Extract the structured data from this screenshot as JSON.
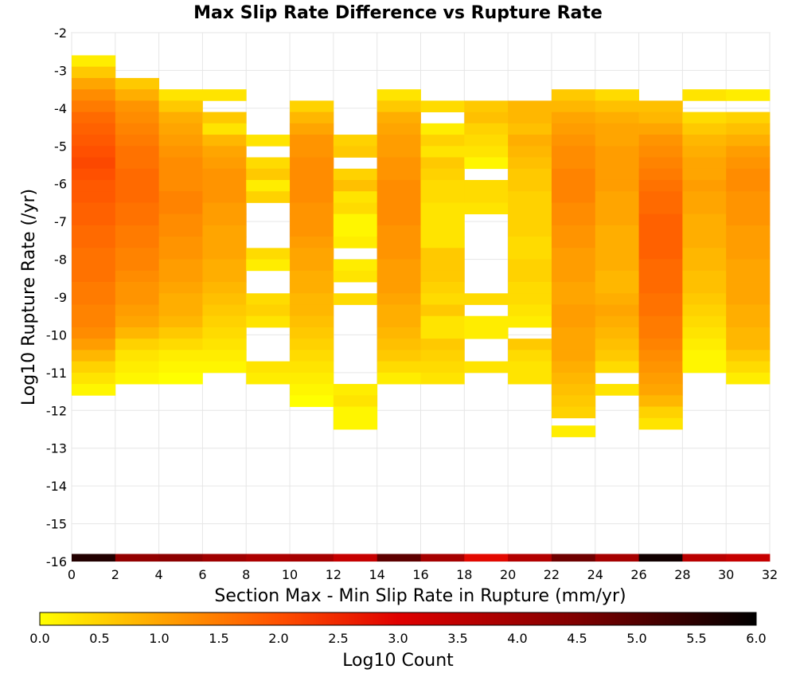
{
  "chart_data": {
    "type": "heatmap",
    "title": "Max Slip Rate Difference vs Rupture Rate",
    "xlabel": "Section Max - Min Slip Rate in Rupture (mm/yr)",
    "ylabel": "Log10 Rupture Rate (/yr)",
    "xlim": [
      0,
      32
    ],
    "ylim": [
      -16,
      -2
    ],
    "x_ticks": [
      "0",
      "2",
      "4",
      "6",
      "8",
      "10",
      "12",
      "14",
      "16",
      "18",
      "20",
      "22",
      "24",
      "26",
      "28",
      "30",
      "32"
    ],
    "y_ticks": [
      "-2",
      "-3",
      "-4",
      "-5",
      "-6",
      "-7",
      "-8",
      "-9",
      "-10",
      "-11",
      "-12",
      "-13",
      "-14",
      "-15",
      "-16"
    ],
    "grid": true,
    "x_bin_width": 2,
    "y_bin_height": 0.3,
    "colorbar": {
      "label": "Log10 Count",
      "range": [
        0.0,
        6.0
      ],
      "ticks": [
        "0.0",
        "0.5",
        "1.0",
        "1.5",
        "2.0",
        "2.5",
        "3.0",
        "3.5",
        "4.0",
        "4.5",
        "5.0",
        "5.5",
        "6.0"
      ],
      "colors": [
        "#ffff00",
        "#ffa500",
        "#ff5000",
        "#e00000",
        "#800000",
        "#000000"
      ],
      "stops": [
        0.0,
        1.0,
        2.0,
        3.0,
        4.5,
        6.0
      ]
    },
    "columns": [
      {
        "x_start": 0,
        "y_top": -2.6,
        "values": [
          0.2,
          0.6,
          1.0,
          1.3,
          1.5,
          1.7,
          1.8,
          1.9,
          2.0,
          2.1,
          2.0,
          1.9,
          1.9,
          1.8,
          1.8,
          1.7,
          1.7,
          1.6,
          1.6,
          1.6,
          1.5,
          1.5,
          1.4,
          1.4,
          1.3,
          1.1,
          0.8,
          0.5,
          0.3,
          0.1
        ]
      },
      {
        "x_start": 2,
        "y_top": -3.2,
        "values": [
          0.6,
          0.9,
          1.2,
          1.3,
          1.4,
          1.5,
          1.6,
          1.6,
          1.7,
          1.7,
          1.7,
          1.6,
          1.6,
          1.5,
          1.5,
          1.4,
          1.4,
          1.3,
          1.2,
          1.2,
          1.1,
          1.0,
          0.8,
          0.5,
          0.3,
          0.2,
          0.1
        ]
      },
      {
        "x_start": 4,
        "y_top": -3.5,
        "values": [
          0.3,
          0.6,
          0.9,
          1.0,
          1.1,
          1.2,
          1.3,
          1.3,
          1.3,
          1.4,
          1.4,
          1.3,
          1.3,
          1.2,
          1.2,
          1.1,
          1.1,
          1.0,
          0.9,
          0.9,
          0.8,
          0.6,
          0.4,
          0.2,
          0.1,
          0.0
        ]
      },
      {
        "x_start": 6,
        "y_top": -3.5,
        "values": [
          0.3,
          null,
          0.6,
          0.3,
          0.8,
          1.0,
          1.1,
          1.2,
          1.2,
          1.2,
          1.1,
          1.1,
          1.0,
          1.0,
          1.0,
          0.9,
          0.9,
          0.8,
          0.7,
          0.6,
          0.5,
          0.4,
          0.3,
          0.2,
          0.1
        ]
      },
      {
        "x_start": 8,
        "y_top": -4.7,
        "values": [
          0.3,
          null,
          0.4,
          0.6,
          0.2,
          0.5,
          null,
          null,
          null,
          null,
          0.4,
          0.2,
          null,
          null,
          0.4,
          0.5,
          0.3,
          null,
          null,
          null,
          0.3,
          0.2
        ]
      },
      {
        "x_start": 10,
        "y_top": -3.8,
        "values": [
          0.5,
          0.8,
          1.0,
          1.2,
          1.2,
          1.3,
          1.3,
          1.3,
          1.3,
          1.2,
          1.2,
          1.2,
          1.1,
          1.0,
          1.0,
          0.9,
          0.9,
          0.8,
          0.8,
          0.7,
          0.6,
          0.5,
          0.4,
          0.3,
          0.2,
          0.1,
          0.0
        ]
      },
      {
        "x_start": 12,
        "y_top": -4.7,
        "values": [
          0.5,
          0.6,
          null,
          0.5,
          0.7,
          0.3,
          0.4,
          0.1,
          0.1,
          0.2,
          null,
          0.2,
          0.3,
          null,
          0.4,
          null,
          null,
          null,
          null,
          null,
          null,
          null,
          0.2,
          0.3,
          0.1,
          0.1
        ]
      },
      {
        "x_start": 14,
        "y_top": -3.5,
        "values": [
          0.3,
          0.6,
          0.9,
          1.0,
          1.1,
          1.1,
          1.2,
          1.2,
          1.3,
          1.3,
          1.3,
          1.3,
          1.2,
          1.2,
          1.2,
          1.1,
          1.1,
          1.1,
          1.0,
          0.9,
          0.9,
          0.8,
          0.7,
          0.6,
          0.4,
          0.2
        ]
      },
      {
        "x_start": 16,
        "y_top": -3.8,
        "values": [
          0.4,
          null,
          0.2,
          0.5,
          0.3,
          0.6,
          0.5,
          0.4,
          0.4,
          0.3,
          0.3,
          0.3,
          0.3,
          0.6,
          0.6,
          0.6,
          0.5,
          0.4,
          0.6,
          0.3,
          0.3,
          0.6,
          0.5,
          0.4,
          0.3
        ]
      },
      {
        "x_start": 18,
        "y_top": -3.8,
        "values": [
          0.6,
          0.7,
          0.5,
          0.4,
          0.3,
          0.1,
          null,
          0.4,
          0.4,
          0.3,
          null,
          null,
          null,
          null,
          null,
          null,
          null,
          0.4,
          null,
          0.2,
          0.2,
          null,
          null,
          0.3
        ]
      },
      {
        "x_start": 20,
        "y_top": -3.8,
        "values": [
          0.8,
          0.8,
          0.7,
          0.9,
          0.8,
          0.7,
          0.6,
          0.6,
          0.5,
          0.5,
          0.5,
          0.5,
          0.4,
          0.4,
          0.5,
          0.5,
          0.4,
          0.4,
          0.3,
          0.2,
          null,
          0.6,
          0.4,
          0.3,
          0.3
        ]
      },
      {
        "x_start": 22,
        "y_top": -3.5,
        "values": [
          0.6,
          0.8,
          1.0,
          1.1,
          1.2,
          1.3,
          1.3,
          1.4,
          1.4,
          1.4,
          1.3,
          1.3,
          1.2,
          1.2,
          1.1,
          1.1,
          1.1,
          1.0,
          1.0,
          1.1,
          1.1,
          1.0,
          1.0,
          1.0,
          0.9,
          0.8,
          0.7,
          0.6,
          0.5
        ]
      },
      {
        "x_start": 24,
        "y_top": -3.5,
        "values": [
          0.4,
          0.7,
          0.9,
          1.0,
          1.0,
          1.1,
          1.1,
          1.1,
          1.1,
          1.0,
          1.0,
          1.0,
          0.9,
          0.9,
          0.9,
          0.9,
          0.8,
          0.8,
          0.9,
          1.0,
          0.9,
          0.8,
          0.7,
          0.6,
          0.4,
          null,
          0.3
        ]
      },
      {
        "x_start": 26,
        "y_top": -3.8,
        "values": [
          0.7,
          0.8,
          1.0,
          1.2,
          1.3,
          1.4,
          1.5,
          1.6,
          1.7,
          1.7,
          1.8,
          1.8,
          1.8,
          1.8,
          1.7,
          1.7,
          1.7,
          1.6,
          1.6,
          1.5,
          1.5,
          1.4,
          1.3,
          1.2,
          1.1,
          1.0,
          0.8,
          0.5,
          0.3
        ]
      },
      {
        "x_start": 28,
        "y_top": -3.5,
        "values": [
          0.3,
          null,
          0.4,
          0.6,
          0.8,
          0.9,
          1.0,
          1.0,
          1.1,
          1.0,
          1.0,
          0.9,
          0.9,
          0.9,
          0.8,
          0.8,
          0.7,
          0.7,
          0.6,
          0.5,
          0.4,
          0.3,
          0.2,
          0.1,
          0.1
        ]
      },
      {
        "x_start": 30,
        "y_top": -3.5,
        "values": [
          0.2,
          null,
          0.5,
          0.7,
          0.9,
          1.1,
          1.2,
          1.3,
          1.3,
          1.2,
          1.2,
          1.2,
          1.1,
          1.1,
          1.1,
          1.0,
          1.0,
          1.0,
          1.0,
          0.9,
          0.9,
          0.8,
          0.8,
          0.6,
          0.4,
          0.2
        ]
      }
    ],
    "bottom_row": {
      "y_start": -16.0,
      "y_end": -15.8,
      "values": [
        5.6,
        4.2,
        4.3,
        4.0,
        3.8,
        3.9,
        3.4,
        4.9,
        3.9,
        2.9,
        3.7,
        4.7,
        3.9,
        5.8,
        3.6,
        3.4
      ]
    },
    "isolated_cells": [
      {
        "x_start": 22,
        "y_top": -12.4,
        "value": 0.2
      }
    ]
  }
}
